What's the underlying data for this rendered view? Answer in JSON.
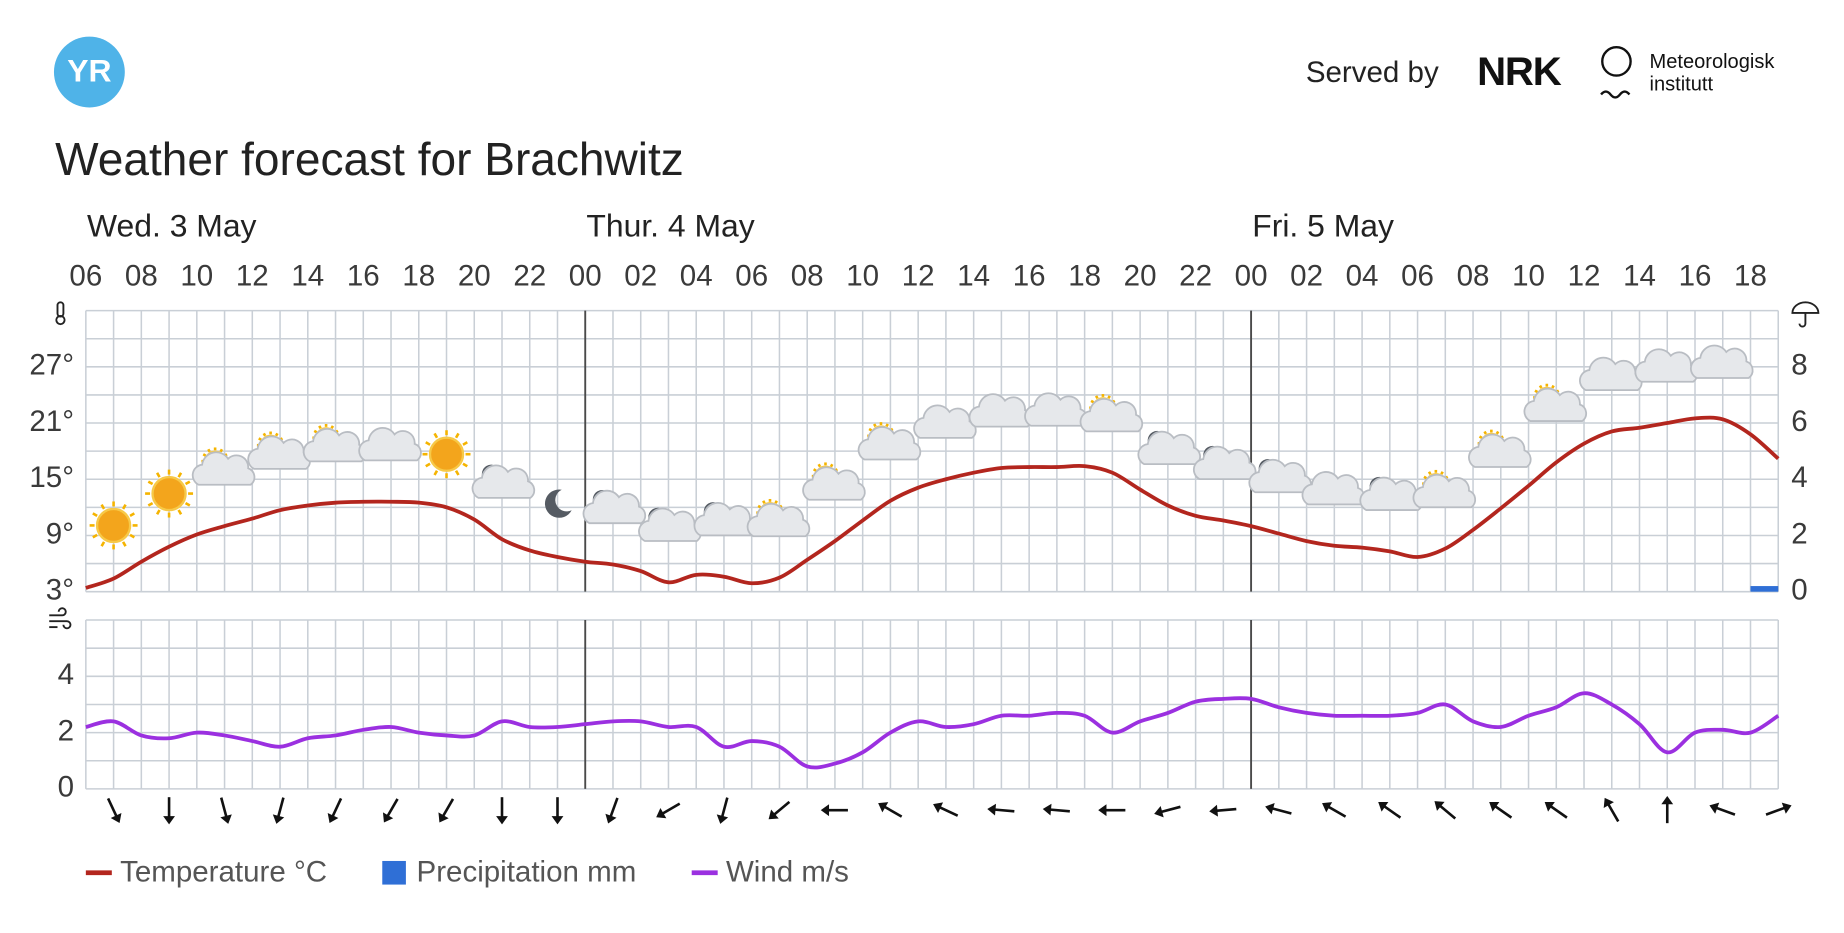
{
  "header": {
    "logo": "YR",
    "served_by": "Served by",
    "partner": "NRK",
    "institute": [
      "Meteorologisk",
      "institutt"
    ]
  },
  "chart_data": {
    "type": "line",
    "title": "Weather forecast for Brachwitz",
    "days": [
      "Wed. 3 May",
      "Thur. 4 May",
      "Fri. 5 May"
    ],
    "categories": [
      "06",
      null,
      "08",
      null,
      "10",
      null,
      "12",
      null,
      "14",
      null,
      "16",
      null,
      "18",
      null,
      "20",
      null,
      "22",
      null,
      "00",
      null,
      "02",
      null,
      "04",
      null,
      "06",
      null,
      "08",
      null,
      "10",
      null,
      "12",
      null,
      "14",
      null,
      "16",
      null,
      "18",
      null,
      "20",
      null,
      "22",
      null,
      "00",
      null,
      "02",
      null,
      "04",
      null,
      "06",
      null,
      "08",
      null,
      "10",
      null,
      "12",
      null,
      "14",
      null,
      "16",
      null,
      "18",
      null
    ],
    "ylim": [
      3,
      33
    ],
    "yticks": [
      {
        "value": 3,
        "label": "3°"
      },
      {
        "value": 9,
        "label": "9°"
      },
      {
        "value": 15,
        "label": "15°"
      },
      {
        "value": 21,
        "label": "21°"
      },
      {
        "value": 27,
        "label": "27°"
      }
    ],
    "ygrid": [
      3,
      6,
      9,
      12,
      15,
      18,
      21,
      24,
      27,
      30,
      33
    ],
    "y2lim": [
      0,
      10
    ],
    "y2ticks": [
      0,
      2,
      4,
      6,
      8
    ],
    "wind_ylim": [
      0,
      6
    ],
    "wind_yticks": [
      0,
      2,
      4
    ],
    "wind_grid": [
      0,
      1,
      2,
      3,
      4,
      5,
      6
    ],
    "grid": true,
    "series": [
      {
        "name": "Temperature °C",
        "color": "#b3261e",
        "values": [
          3.4,
          4.4,
          6.2,
          7.8,
          9.1,
          10.0,
          10.8,
          11.7,
          12.2,
          12.5,
          12.6,
          12.6,
          12.5,
          12.0,
          10.7,
          8.6,
          7.4,
          6.7,
          6.2,
          5.9,
          5.2,
          4.0,
          4.8,
          4.6,
          3.9,
          4.5,
          6.4,
          8.4,
          10.6,
          12.7,
          14.1,
          15.0,
          15.7,
          16.2,
          16.3,
          16.3,
          16.4,
          15.7,
          13.9,
          12.2,
          11.1,
          10.6,
          10.0,
          9.2,
          8.4,
          7.9,
          7.7,
          7.3,
          6.7,
          7.6,
          9.6,
          11.9,
          14.3,
          16.8,
          18.8,
          20.1,
          20.5,
          21.0,
          21.5,
          21.4,
          19.8,
          17.2
        ]
      },
      {
        "name": "Precipitation mm",
        "color": "#2f6fd6",
        "axis": "y2",
        "values": [
          0,
          0,
          0,
          0,
          0,
          0,
          0,
          0,
          0,
          0,
          0,
          0,
          0,
          0,
          0,
          0,
          0,
          0,
          0,
          0,
          0,
          0,
          0,
          0,
          0,
          0,
          0,
          0,
          0,
          0,
          0,
          0,
          0,
          0,
          0,
          0,
          0,
          0,
          0,
          0,
          0,
          0,
          0,
          0,
          0,
          0,
          0,
          0,
          0,
          0,
          0,
          0,
          0,
          0,
          0,
          0,
          0,
          0,
          0,
          0,
          0,
          0.2
        ]
      },
      {
        "name": "Wind m/s",
        "color": "#9b30e0",
        "axis": "wind",
        "values": [
          2.2,
          2.4,
          1.9,
          1.8,
          2.0,
          1.9,
          1.7,
          1.5,
          1.8,
          1.9,
          2.1,
          2.2,
          2.0,
          1.9,
          1.9,
          2.4,
          2.2,
          2.2,
          2.3,
          2.4,
          2.4,
          2.2,
          2.2,
          1.5,
          1.7,
          1.5,
          0.8,
          0.9,
          1.3,
          2.0,
          2.4,
          2.2,
          2.3,
          2.6,
          2.6,
          2.7,
          2.6,
          2.0,
          2.4,
          2.7,
          3.1,
          3.2,
          3.2,
          2.9,
          2.7,
          2.6,
          2.6,
          2.6,
          2.7,
          3.0,
          2.4,
          2.2,
          2.6,
          2.9,
          3.4,
          3.0,
          2.3,
          1.3,
          2.0,
          2.1,
          2.0,
          2.6
        ]
      }
    ],
    "wind_direction": [
      155,
      180,
      165,
      195,
      205,
      210,
      210,
      180,
      180,
      200,
      240,
      195,
      230,
      270,
      300,
      295,
      275,
      275,
      270,
      255,
      265,
      285,
      300,
      305,
      310,
      305,
      305,
      330,
      0,
      290,
      70
    ],
    "symbols": [
      "sun",
      "sun",
      "sun-cloud",
      "sun-cloud",
      "sun-cloud",
      "cloud",
      "sun",
      "moon-cloud",
      "moon",
      "moon-cloud",
      "moon-cloud",
      "moon-cloud",
      "sun-cloud",
      "sun-cloud",
      "sun-cloud",
      "cloud",
      "cloud",
      "cloud",
      "sun-cloud",
      "moon-cloud",
      "moon-cloud",
      "moon-cloud",
      "cloud",
      "moon-cloud",
      "sun-cloud",
      "sun-cloud",
      "sun-cloud",
      "cloud",
      "cloud",
      "cloud"
    ]
  }
}
